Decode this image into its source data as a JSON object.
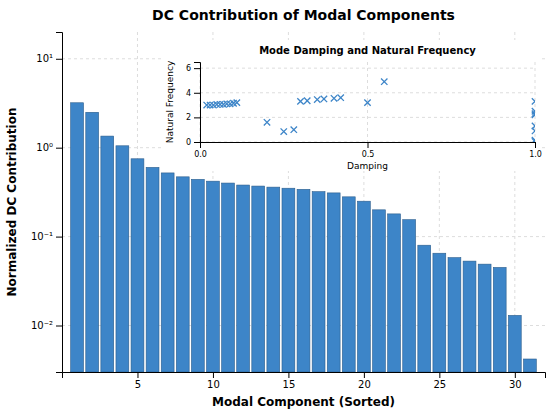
{
  "chart_data": [
    {
      "type": "bar",
      "title": "DC Contribution of Modal Components",
      "xlabel": "Modal Component (Sorted)",
      "ylabel": "Normalized DC Contribution",
      "x": [
        1,
        2,
        3,
        4,
        5,
        6,
        7,
        8,
        9,
        10,
        11,
        12,
        13,
        14,
        15,
        16,
        17,
        18,
        19,
        20,
        21,
        22,
        23,
        24,
        25,
        26,
        27,
        28,
        29,
        30,
        31
      ],
      "values": [
        3.2,
        2.5,
        1.35,
        1.05,
        0.75,
        0.6,
        0.52,
        0.47,
        0.44,
        0.42,
        0.4,
        0.38,
        0.37,
        0.36,
        0.35,
        0.34,
        0.32,
        0.31,
        0.28,
        0.25,
        0.2,
        0.18,
        0.155,
        0.08,
        0.065,
        0.058,
        0.053,
        0.049,
        0.045,
        0.013,
        0.0042
      ],
      "color": "#3d85c8",
      "log": "y",
      "xlim": [
        0,
        32
      ],
      "xticks": [
        5,
        10,
        15,
        20,
        25,
        30
      ],
      "ylim": [
        0.003,
        20
      ],
      "yticks": [
        {
          "value": 0.01,
          "label": "10⁻²"
        },
        {
          "value": 0.1,
          "label": "10⁻¹"
        },
        {
          "value": 1,
          "label": "10⁰"
        },
        {
          "value": 10,
          "label": "10¹"
        }
      ],
      "grid": true
    },
    {
      "type": "scatter",
      "title": "Mode Damping and Natural Frequency",
      "xlabel": "Damping",
      "ylabel": "Natural Frequency",
      "x": [
        0.02,
        0.03,
        0.04,
        0.05,
        0.06,
        0.07,
        0.08,
        0.09,
        0.1,
        0.11,
        0.2,
        0.25,
        0.28,
        0.3,
        0.32,
        0.35,
        0.37,
        0.4,
        0.42,
        0.5,
        0.55,
        1.0,
        1.0,
        1.0,
        1.0,
        1.0,
        1.0,
        1.0,
        1.0
      ],
      "values": [
        3.0,
        3.0,
        3.0,
        3.05,
        3.05,
        3.05,
        3.1,
        3.1,
        3.15,
        3.2,
        1.6,
        0.85,
        1.0,
        3.3,
        3.35,
        3.45,
        3.5,
        3.55,
        3.6,
        3.2,
        4.9,
        3.3,
        2.5,
        2.3,
        2.2,
        1.3,
        0.9,
        0.15,
        0.05
      ],
      "color": "#3d85c8",
      "marker": "x",
      "xlim": [
        0,
        1.0
      ],
      "xticks": [
        {
          "value": 0,
          "label": "0.0"
        },
        0.5,
        {
          "value": 1.0,
          "label": "1.0"
        }
      ],
      "ylim": [
        0,
        6.5
      ],
      "yticks": [
        0,
        2,
        4,
        6
      ],
      "grid": true
    }
  ]
}
